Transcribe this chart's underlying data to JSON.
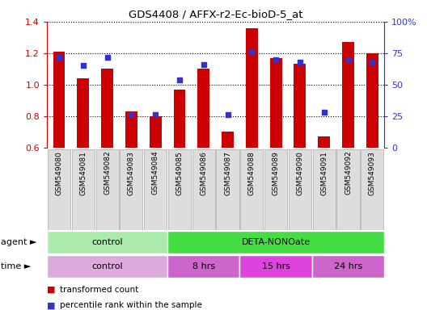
{
  "title": "GDS4408 / AFFX-r2-Ec-bioD-5_at",
  "samples": [
    "GSM549080",
    "GSM549081",
    "GSM549082",
    "GSM549083",
    "GSM549084",
    "GSM549085",
    "GSM549086",
    "GSM549087",
    "GSM549088",
    "GSM549089",
    "GSM549090",
    "GSM549091",
    "GSM549092",
    "GSM549093"
  ],
  "bar_values": [
    1.21,
    1.04,
    1.1,
    0.83,
    0.8,
    0.97,
    1.1,
    0.7,
    1.36,
    1.17,
    1.13,
    0.67,
    1.27,
    1.2
  ],
  "dot_values": [
    72,
    65,
    72,
    26,
    26,
    54,
    66,
    26,
    76,
    70,
    68,
    28,
    70,
    68
  ],
  "bar_color": "#cc0000",
  "dot_color": "#3333cc",
  "ylim_left": [
    0.6,
    1.4
  ],
  "ylim_right": [
    0,
    100
  ],
  "yticks_left": [
    0.6,
    0.8,
    1.0,
    1.2,
    1.4
  ],
  "yticks_right": [
    0,
    25,
    50,
    75,
    100
  ],
  "ytick_labels_right": [
    "0",
    "25",
    "50",
    "75",
    "100%"
  ],
  "agent_groups": [
    {
      "label": "control",
      "start": 0,
      "end": 5,
      "color": "#aaeaaa"
    },
    {
      "label": "DETA-NONOate",
      "start": 5,
      "end": 14,
      "color": "#44dd44"
    }
  ],
  "time_groups": [
    {
      "label": "control",
      "start": 0,
      "end": 5,
      "color": "#ddaadd"
    },
    {
      "label": "8 hrs",
      "start": 5,
      "end": 8,
      "color": "#cc66cc"
    },
    {
      "label": "15 hrs",
      "start": 8,
      "end": 11,
      "color": "#dd44dd"
    },
    {
      "label": "24 hrs",
      "start": 11,
      "end": 14,
      "color": "#cc66cc"
    }
  ],
  "legend_items": [
    {
      "label": "transformed count",
      "color": "#cc0000"
    },
    {
      "label": "percentile rank within the sample",
      "color": "#3333cc"
    }
  ],
  "agent_label": "agent",
  "time_label": "time",
  "left_axis_color": "#cc0000",
  "right_axis_color": "#3333cc"
}
